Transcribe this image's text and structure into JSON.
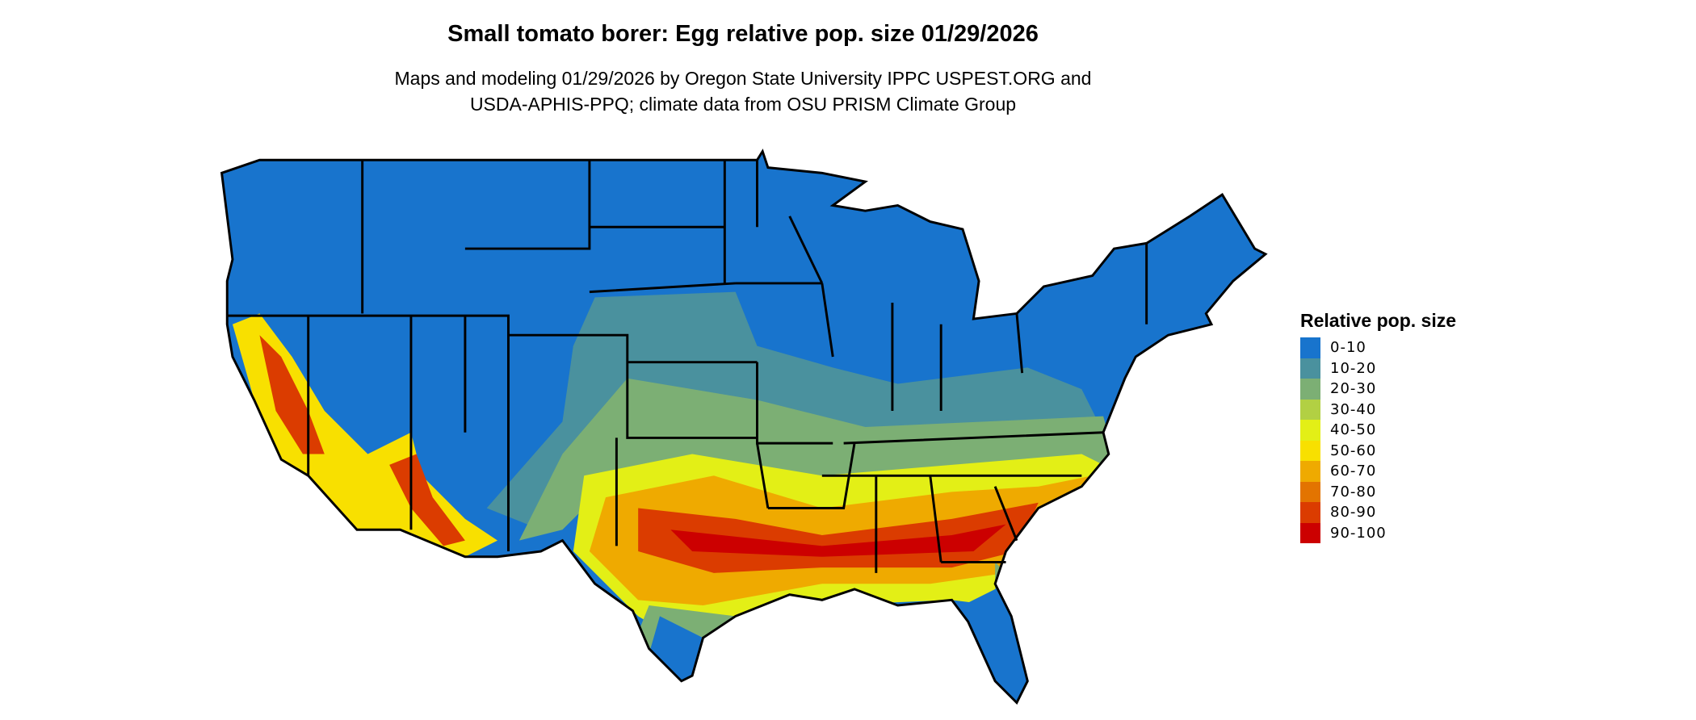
{
  "title": "Small tomato borer: Egg relative pop. size 01/29/2026",
  "subtitle_lines": [
    "Maps and modeling 01/29/2026 by Oregon State University IPPC USPEST.ORG and",
    "USDA-APHIS-PPQ; climate data from OSU PRISM Climate Group"
  ],
  "legend": {
    "title": "Relative pop. size",
    "items": [
      {
        "label": "0-10",
        "color": "#1874cd"
      },
      {
        "label": "10-20",
        "color": "#4a919e"
      },
      {
        "label": "20-30",
        "color": "#7caf74"
      },
      {
        "label": "30-40",
        "color": "#b2d043"
      },
      {
        "label": "40-50",
        "color": "#e3ef16"
      },
      {
        "label": "50-60",
        "color": "#f8e000"
      },
      {
        "label": "60-70",
        "color": "#efaa00"
      },
      {
        "label": "70-80",
        "color": "#e37400"
      },
      {
        "label": "80-90",
        "color": "#db3c00"
      },
      {
        "label": "90-100",
        "color": "#cc0000"
      }
    ]
  }
}
